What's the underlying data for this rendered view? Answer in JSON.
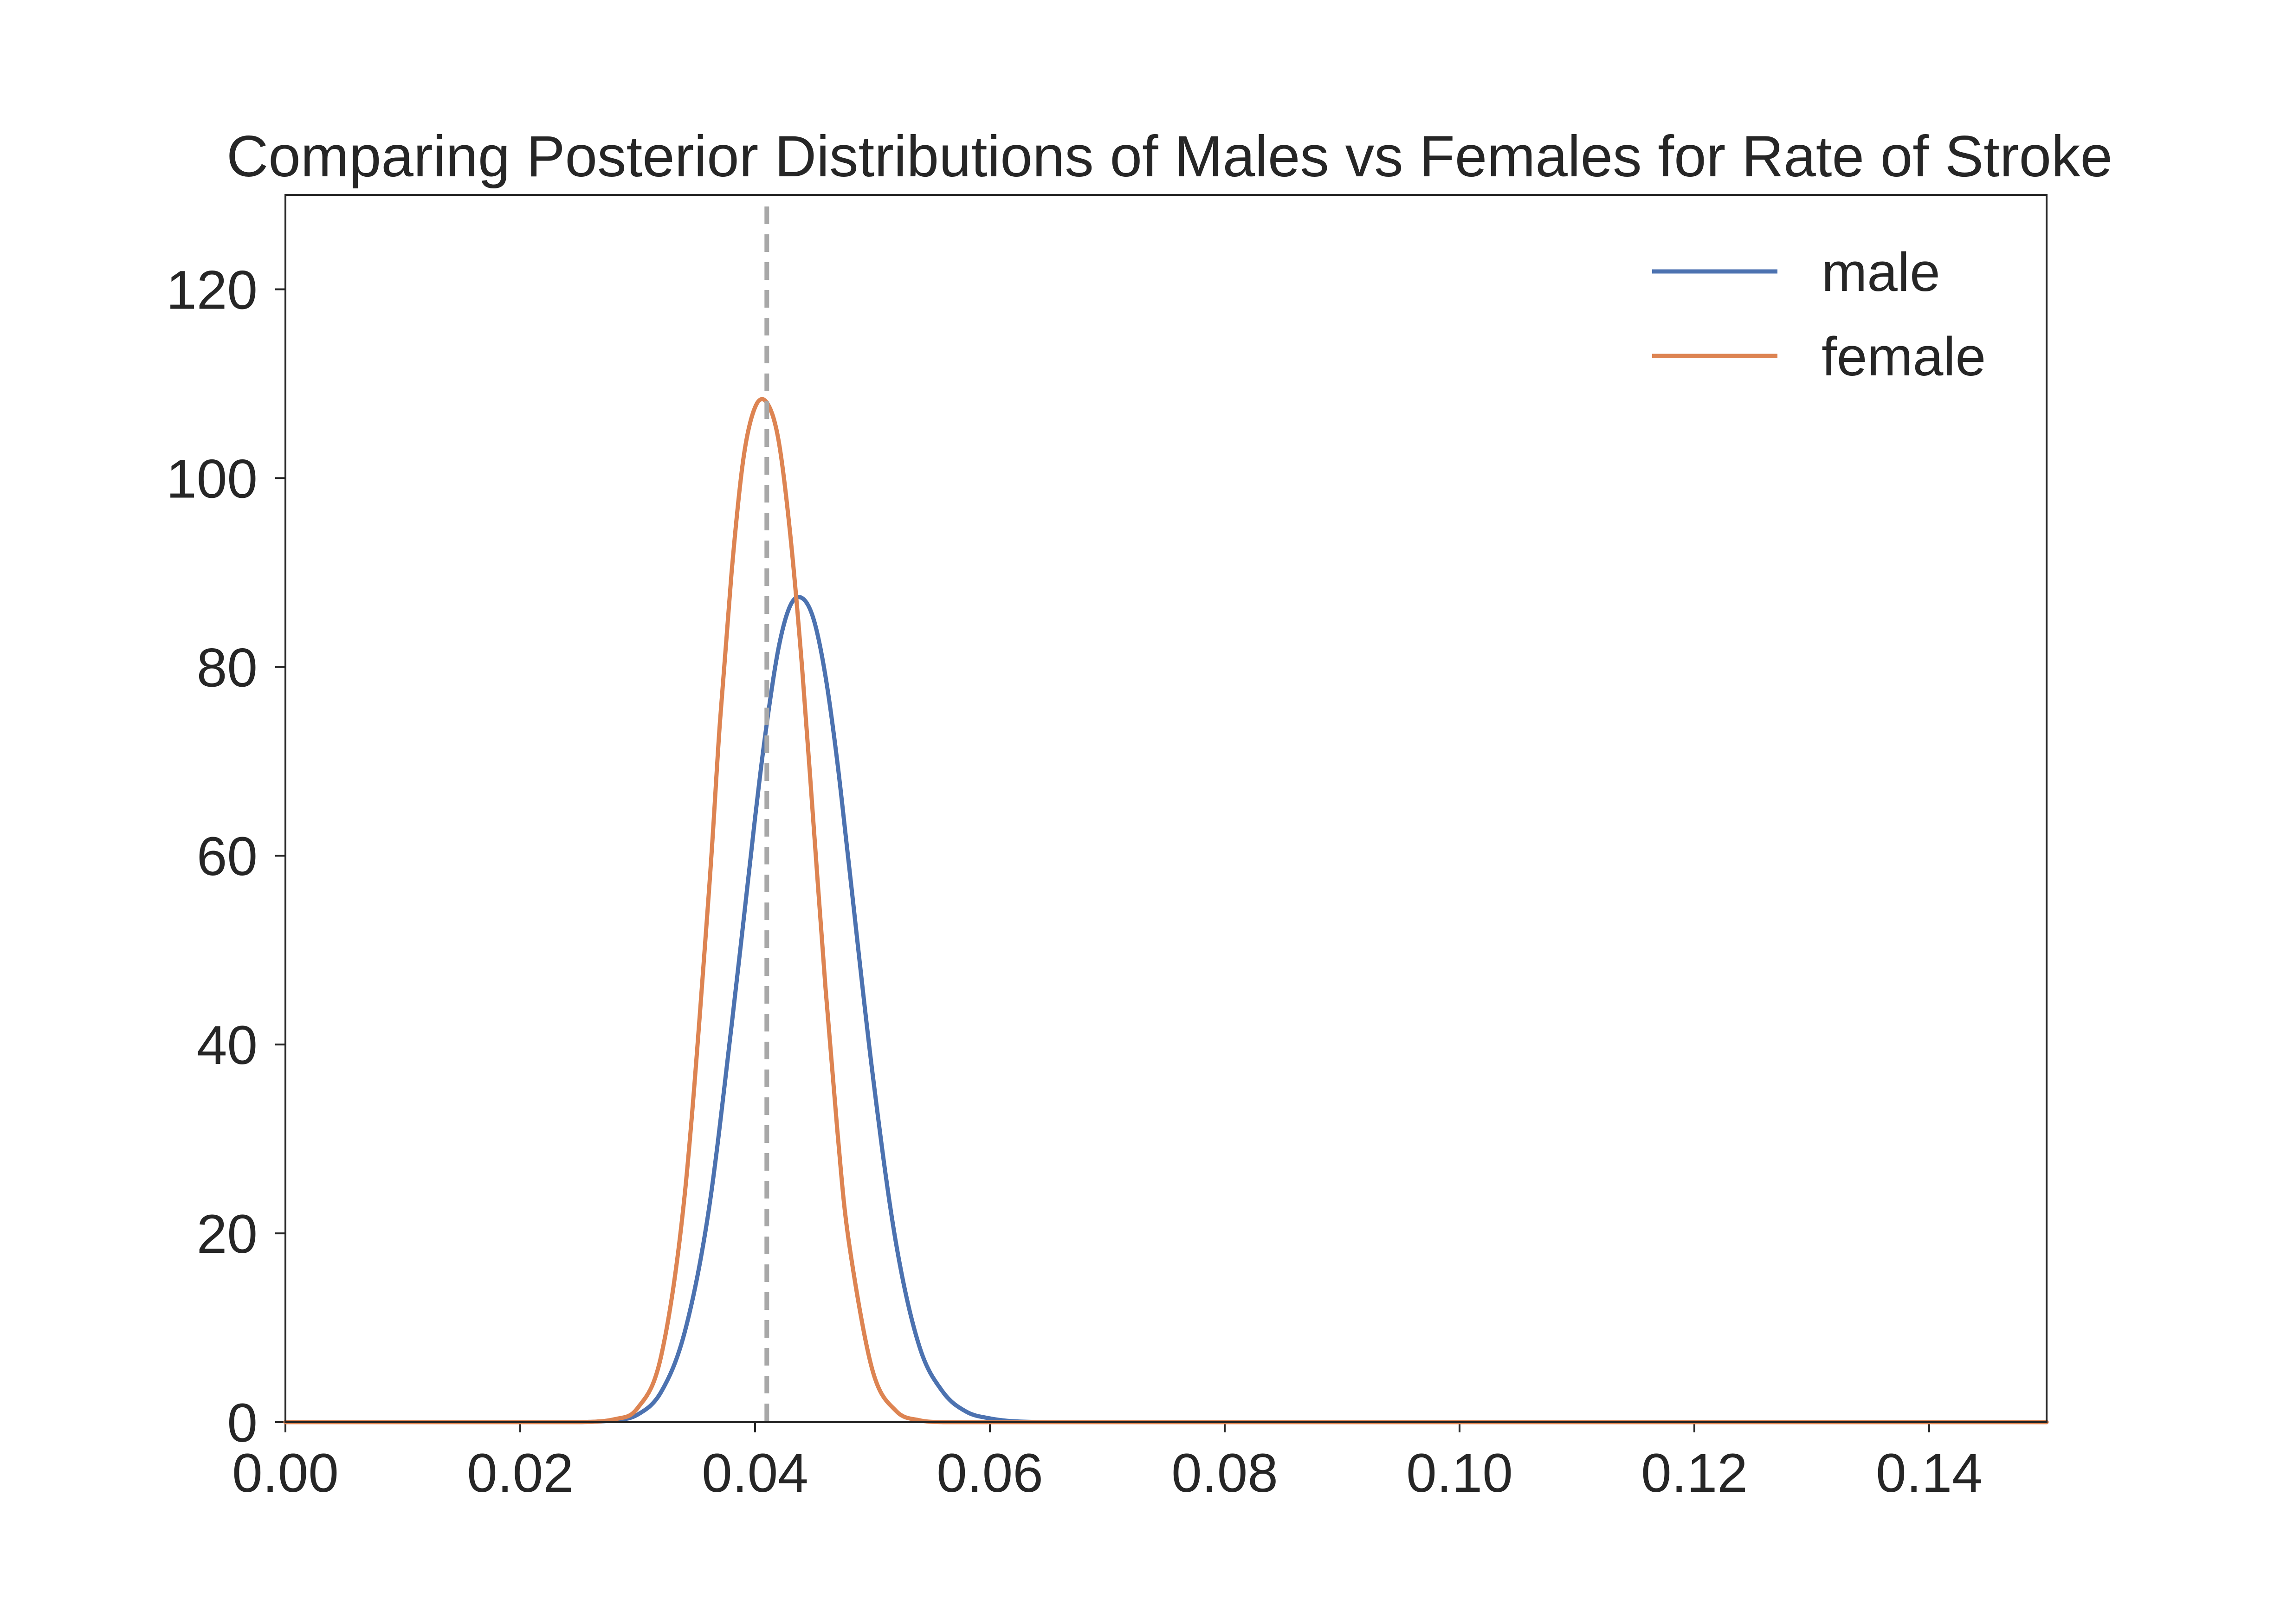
{
  "chart_data": {
    "type": "line",
    "title": "Comparing Posterior Distributions of Males vs Females for Rate of Stroke",
    "xlabel": "",
    "ylabel": "",
    "xlim": [
      0.0,
      0.15
    ],
    "ylim": [
      0,
      130
    ],
    "x_ticks": [
      "0.00",
      "0.02",
      "0.04",
      "0.06",
      "0.08",
      "0.10",
      "0.12",
      "0.14"
    ],
    "y_ticks": [
      "0",
      "20",
      "40",
      "60",
      "80",
      "100",
      "120"
    ],
    "grid": false,
    "legend": {
      "position": "top-right"
    },
    "series": [
      {
        "name": "male",
        "color": "#4c72b0",
        "x": [
          0.0,
          0.02,
          0.025,
          0.028,
          0.03,
          0.032,
          0.034,
          0.036,
          0.038,
          0.04,
          0.041,
          0.042,
          0.043,
          0.044,
          0.045,
          0.046,
          0.047,
          0.048,
          0.05,
          0.052,
          0.054,
          0.056,
          0.058,
          0.06,
          0.062,
          0.065,
          0.07,
          0.08,
          0.1,
          0.15
        ],
        "y": [
          0,
          0,
          0,
          0.2,
          0.8,
          3.2,
          9.5,
          22,
          42,
          64,
          74,
          82,
          86.5,
          87.3,
          85,
          79,
          70,
          59,
          37,
          19,
          8,
          3.2,
          1.1,
          0.4,
          0.1,
          0,
          0,
          0,
          0,
          0
        ]
      },
      {
        "name": "female",
        "color": "#dd8452",
        "x": [
          0.0,
          0.02,
          0.025,
          0.028,
          0.03,
          0.032,
          0.034,
          0.036,
          0.037,
          0.038,
          0.039,
          0.04,
          0.041,
          0.042,
          0.043,
          0.044,
          0.045,
          0.046,
          0.047,
          0.048,
          0.05,
          0.052,
          0.054,
          0.056,
          0.058,
          0.06,
          0.065,
          0.08,
          0.1,
          0.15
        ],
        "y": [
          0,
          0,
          0,
          0.3,
          1.5,
          7,
          24,
          55,
          74,
          90,
          102,
          107.5,
          108,
          104,
          94,
          80,
          63,
          46,
          31,
          19,
          5.5,
          1.2,
          0.2,
          0,
          0,
          0,
          0,
          0,
          0,
          0
        ]
      }
    ],
    "reference_line": {
      "x": 0.041,
      "style": "dashed",
      "color": "#a8a8a8"
    }
  }
}
